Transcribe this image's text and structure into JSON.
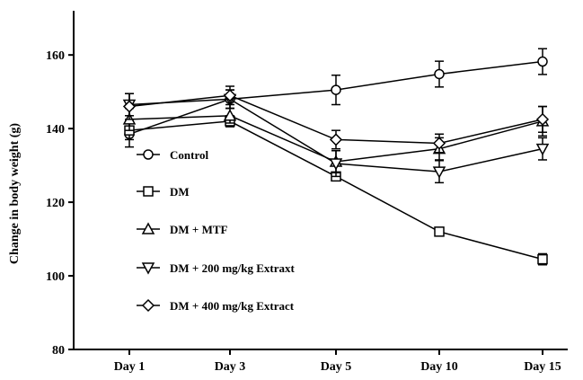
{
  "chart_data": {
    "type": "line",
    "title": "",
    "xlabel": "",
    "ylabel": "Change in body weight (g)",
    "categories": [
      "Day 1",
      "Day 3",
      "Day 5",
      "Day 10",
      "Day 15"
    ],
    "ylim": [
      80,
      172
    ],
    "yticks": [
      80,
      100,
      120,
      140,
      160
    ],
    "grid": false,
    "legend_position": "center-left",
    "series": [
      {
        "name": "Control",
        "marker": "circle",
        "values": [
          138.5,
          148,
          150.5,
          154.8,
          158.2
        ],
        "errors": [
          3.5,
          2.5,
          4,
          3.5,
          3.5
        ]
      },
      {
        "name": "DM",
        "marker": "square",
        "values": [
          139.5,
          142,
          127,
          112,
          104.5
        ],
        "errors": [
          2.5,
          1.5,
          1,
          1,
          1.5
        ]
      },
      {
        "name": "DM + MTF",
        "marker": "triangle-up",
        "values": [
          142.5,
          143.5,
          131,
          134.5,
          142
        ],
        "errors": [
          3,
          2,
          3,
          3,
          4
        ]
      },
      {
        "name": "DM + 200 mg/kg Extraxt",
        "marker": "triangle-down",
        "values": [
          146.5,
          148,
          130.5,
          128.3,
          134.5
        ],
        "errors": [
          3,
          2.5,
          3.5,
          3,
          3
        ]
      },
      {
        "name": "DM + 400 mg/kg Extract",
        "marker": "diamond",
        "values": [
          146,
          149,
          137,
          136,
          142.5
        ],
        "errors": [
          3.5,
          2.5,
          2.5,
          2.5,
          3.5
        ]
      }
    ]
  }
}
